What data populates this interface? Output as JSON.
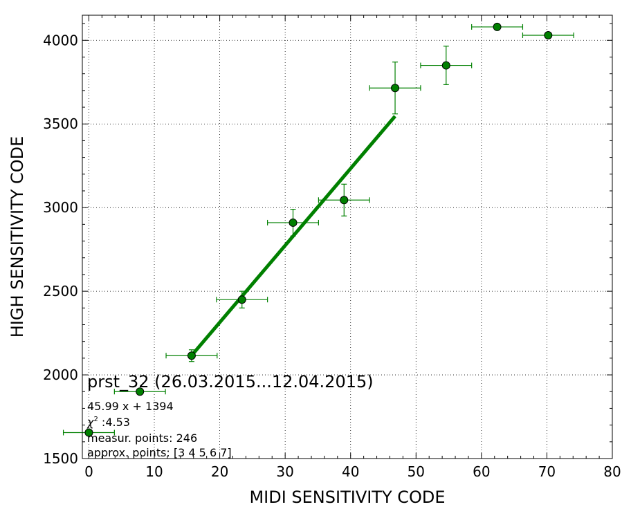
{
  "chart_data": {
    "type": "scatter",
    "xlabel": "MIDI SENSITIVITY CODE",
    "ylabel": "HIGH SENSITIVITY CODE",
    "xlim": [
      -1,
      80
    ],
    "ylim": [
      1500,
      4150
    ],
    "x_ticks": [
      0,
      10,
      20,
      30,
      40,
      50,
      60,
      70,
      80
    ],
    "y_ticks": [
      1500,
      2000,
      2500,
      3000,
      3500,
      4000
    ],
    "x_tick_labels": [
      "0",
      "10",
      "20",
      "30",
      "40",
      "50",
      "60",
      "70",
      "80"
    ],
    "y_tick_labels": [
      "1500",
      "2000",
      "2500",
      "3000",
      "3500",
      "4000"
    ],
    "grid": true,
    "marker_color": "#008000",
    "line_color": "#008000",
    "points": [
      {
        "x": 0.0,
        "y": 1655,
        "xerr": 3.9,
        "yerr": 0
      },
      {
        "x": 7.8,
        "y": 1900,
        "xerr": 3.9,
        "yerr": 15
      },
      {
        "x": 15.7,
        "y": 2115,
        "xerr": 3.9,
        "yerr": 35
      },
      {
        "x": 23.4,
        "y": 2450,
        "xerr": 3.9,
        "yerr": 50
      },
      {
        "x": 31.2,
        "y": 2910,
        "xerr": 3.9,
        "yerr": 80
      },
      {
        "x": 39.0,
        "y": 3045,
        "xerr": 3.9,
        "yerr": 95
      },
      {
        "x": 46.8,
        "y": 3715,
        "xerr": 3.9,
        "yerr": 155
      },
      {
        "x": 54.6,
        "y": 3850,
        "xerr": 3.9,
        "yerr": 115
      },
      {
        "x": 62.4,
        "y": 4080,
        "xerr": 3.9,
        "yerr": 0
      },
      {
        "x": 70.2,
        "y": 4030,
        "xerr": 3.9,
        "yerr": 0
      }
    ],
    "fit": {
      "slope": 45.99,
      "intercept": 1394,
      "x_range": [
        15.7,
        46.8
      ]
    },
    "annotations": {
      "title": "prst_32 (26.03.2015...12.04.2015)",
      "formula": "45.99 x + 1394",
      "chi2_symbol": "χ",
      "chi2_sup": "2",
      "chi2_value": " :4.53",
      "measur": "measur. points: 246",
      "approx": "approx. points: [3 4 5 6 7]"
    }
  }
}
